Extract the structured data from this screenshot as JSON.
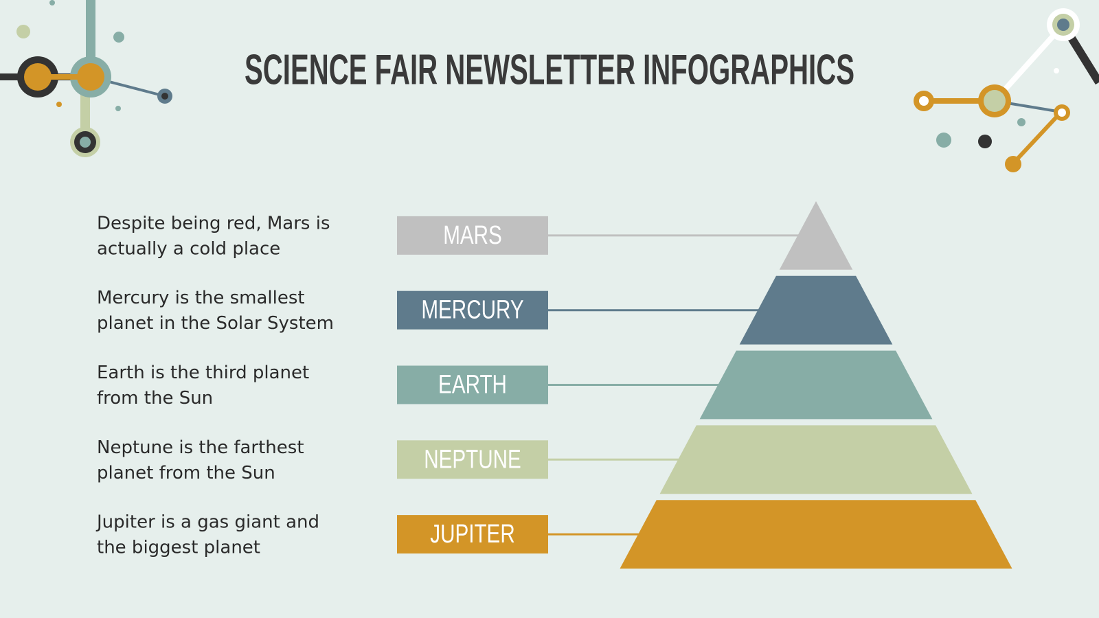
{
  "header": {
    "title": "SCIENCE FAIR NEWSLETTER INFOGRAPHICS"
  },
  "items": [
    {
      "label": "MARS",
      "description": [
        "Despite being red, Mars is",
        "actually a cold place"
      ],
      "color": "#c0c0c0"
    },
    {
      "label": "MERCURY",
      "description": [
        "Mercury is the smallest",
        "planet in the Solar System"
      ],
      "color": "#5f7b8c"
    },
    {
      "label": "EARTH",
      "description": [
        "Earth is the third planet",
        "from the Sun"
      ],
      "color": "#87ada6"
    },
    {
      "label": "NEPTUNE",
      "description": [
        "Neptune is the farthest",
        "planet from the Sun"
      ],
      "color": "#c4cfa6"
    },
    {
      "label": "JUPITER",
      "description": [
        "Jupiter is a gas giant and",
        "the biggest planet"
      ],
      "color": "#d39527"
    }
  ]
}
